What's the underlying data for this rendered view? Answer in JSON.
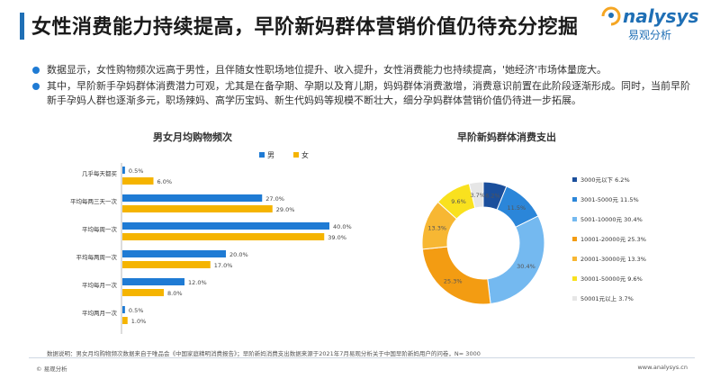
{
  "title": "女性消费能力持续提高，早阶新妈群体营销价值仍待充分挖掘",
  "logo": {
    "en": "nalysys",
    "cn": "易观分析"
  },
  "bullets": [
    "数据显示，女性购物频次远高于男性，且伴随女性职场地位提升、收入提升，女性消费能力也持续提高，'她经济'市场体量庞大。",
    "其中，早阶新手孕妈群体消费潜力可观，尤其是在备孕期、孕期以及育儿期，妈妈群体消费激增，消费意识前置在此阶段逐渐形成。同时，当前早阶新手孕妈人群也逐渐多元，职场辣妈、高学历宝妈、新生代妈妈等规模不断壮大，细分孕妈群体营销价值仍待进一步拓展。"
  ],
  "colors": {
    "accent": "#1f6fb5",
    "male": "#1f7bd4",
    "female": "#f5b400"
  },
  "chart_data": [
    {
      "type": "bar",
      "orientation": "horizontal",
      "title": "男女月均购物频次",
      "categories": [
        "几乎每天都买",
        "平均每两三天一次",
        "平均每周一次",
        "平均每两周一次",
        "平均每月一次",
        "平均两月一次"
      ],
      "series": [
        {
          "name": "男",
          "values": [
            0.5,
            27.0,
            40.0,
            20.0,
            12.0,
            0.5
          ],
          "labels": [
            "0.5%",
            "27.0%",
            "40.0%",
            "20.0%",
            "12.0%",
            "0.5%"
          ]
        },
        {
          "name": "女",
          "values": [
            6.0,
            29.0,
            39.0,
            17.0,
            8.0,
            1.0
          ],
          "labels": [
            "6.0%",
            "29.0%",
            "39.0%",
            "17.0%",
            "8.0%",
            "1.0%"
          ]
        }
      ],
      "xlim": [
        0,
        40
      ],
      "legend": "top-right"
    },
    {
      "type": "pie",
      "subtype": "donut",
      "title": "早阶新妈群体消费支出",
      "slices": [
        {
          "label": "3000元以下",
          "value": 6.2,
          "display": "6.2%",
          "legend": "3000元以下 6.2%",
          "color": "#1b4f9c"
        },
        {
          "label": "3001-5000元",
          "value": 11.5,
          "display": "11.5%",
          "legend": "3001-5000元 11.5%",
          "color": "#2b86d9"
        },
        {
          "label": "5001-10000元",
          "value": 30.4,
          "display": "30.4%",
          "legend": "5001-10000元 30.4%",
          "color": "#74b9f0"
        },
        {
          "label": "10001-20000元",
          "value": 25.3,
          "display": "25.3%",
          "legend": "10001-20000元 25.3%",
          "color": "#f39c12"
        },
        {
          "label": "20001-30000元",
          "value": 13.3,
          "display": "13.3%",
          "legend": "20001-30000元 13.3%",
          "color": "#f7b733"
        },
        {
          "label": "30001-50000元",
          "value": 9.6,
          "display": "9.6%",
          "legend": "30001-50000元 9.6%",
          "color": "#f9e11e"
        },
        {
          "label": "50001元以上",
          "value": 3.7,
          "display": "3.7%",
          "legend": "50001元以上 3.7%",
          "color": "#e6e6e6"
        }
      ],
      "legend": "right"
    }
  ],
  "footer": {
    "note": "数据说明：男女月均购物频次数据来自于唯品会《中国家庭精明消费报告》；早阶新妈消费支出数据来源于2021年7月易观分析关于中国早阶新妈用户的问卷，N= 3000",
    "left": "© 易观分析",
    "right": "www.analysys.cn"
  }
}
